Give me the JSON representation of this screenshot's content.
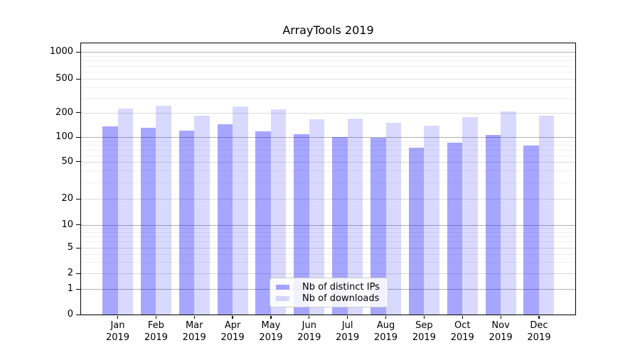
{
  "title": "ArrayTools 2019",
  "chart_data": {
    "type": "bar",
    "title": "ArrayTools 2019",
    "categories": [
      "Jan 2019",
      "Feb 2019",
      "Mar 2019",
      "Apr 2019",
      "May 2019",
      "Jun 2019",
      "Jul 2019",
      "Aug 2019",
      "Sep 2019",
      "Oct 2019",
      "Nov 2019",
      "Dec 2019"
    ],
    "series": [
      {
        "name": "Nb of distinct IPs",
        "color": "rgba(0,0,255,0.35)",
        "values": [
          135,
          130,
          120,
          143,
          119,
          108,
          101,
          99,
          74,
          86,
          107,
          79
        ]
      },
      {
        "name": "Nb of downloads",
        "color": "rgba(0,0,255,0.15)",
        "values": [
          225,
          240,
          182,
          236,
          218,
          165,
          170,
          151,
          138,
          176,
          208,
          185
        ]
      }
    ],
    "xlabel": "",
    "ylabel": "",
    "yscale": "symlog (linear 0-1, logarithmic 1-1000)",
    "yticks": [
      0,
      1,
      2,
      5,
      10,
      20,
      50,
      100,
      200,
      500,
      1000
    ],
    "ylim": [
      0,
      1300
    ],
    "grid": true,
    "legend_position": "inside lower-center",
    "colors": {
      "bar_distinct_ips": "rgba(0,0,255,0.35)",
      "bar_downloads": "rgba(0,0,255,0.15)",
      "grid_major": "#b0b0b0",
      "grid_mid": "#dcdcdc",
      "grid_minor": "#f0f0f0",
      "axis": "#000000",
      "legend_border": "#cccccc"
    }
  }
}
